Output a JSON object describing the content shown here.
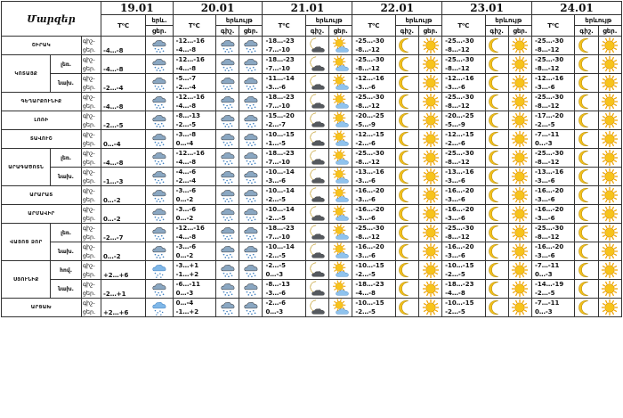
{
  "header": {
    "regions_title": "Մարզեր",
    "tc": "T⁰C",
    "phenomena": "երևույթ",
    "phen_first": "երև.",
    "phen_first_2": "ցեր.",
    "day": "ցեր.",
    "night": "գիշ.",
    "dates": [
      "19.01",
      "20.01",
      "21.01",
      "22.01",
      "23.01",
      "24.01"
    ]
  },
  "rows": [
    {
      "region": "ՇԻՐԱԿ",
      "sub": "",
      "dn": [
        "գիշ-",
        "ցեր."
      ],
      "t1": "-4…-8",
      "i1": "snow",
      "d": [
        {
          "n": "-12…-16",
          "d": "-4…-8",
          "a": "snow",
          "b": "snow"
        },
        {
          "n": "-18…-23",
          "d": "-7…-10",
          "a": "moon-cloud",
          "b": "sun-cloud"
        },
        {
          "n": "-25…-30",
          "d": "-8…-12",
          "a": "moon",
          "b": "sun"
        },
        {
          "n": "-25…-30",
          "d": "-8…-12",
          "a": "moon",
          "b": "sun"
        },
        {
          "n": "-25…-30",
          "d": "-8…-12",
          "a": "moon",
          "b": "sun"
        }
      ]
    },
    {
      "region": "ԿՈՏԱՅՔ",
      "sub": "լեռ.",
      "dn": [
        "գիշ-",
        "ցեր."
      ],
      "t1": "-4…-8",
      "i1": "snow",
      "d": [
        {
          "n": "-12…-16",
          "d": "-4…-8",
          "a": "snow",
          "b": "snow"
        },
        {
          "n": "-18…-23",
          "d": "-7…-10",
          "a": "moon-cloud",
          "b": "sun-cloud"
        },
        {
          "n": "-25…-30",
          "d": "-8…-12",
          "a": "moon",
          "b": "sun"
        },
        {
          "n": "-25…-30",
          "d": "-8…-12",
          "a": "moon",
          "b": "sun"
        },
        {
          "n": "-25…-30",
          "d": "-8…-12",
          "a": "moon",
          "b": "sun"
        }
      ]
    },
    {
      "region": "",
      "sub": "նախ.",
      "dn": [
        "գիշ-",
        "ցեր."
      ],
      "t1": "-2…-4",
      "i1": "snow",
      "d": [
        {
          "n": "-5…-7",
          "d": "-2…-4",
          "a": "snow",
          "b": "snow"
        },
        {
          "n": "-11…-14",
          "d": "-3…-6",
          "a": "moon-cloud",
          "b": "sun-cloud"
        },
        {
          "n": "-12…-16",
          "d": "-3…-6",
          "a": "moon",
          "b": "sun"
        },
        {
          "n": "-12…-16",
          "d": "-3…-6",
          "a": "moon",
          "b": "sun"
        },
        {
          "n": "-12…-16",
          "d": "-3…-6",
          "a": "moon",
          "b": "sun"
        }
      ]
    },
    {
      "region": "ԳԵՂԱՐՔՈՒՆԻՔ",
      "sub": "",
      "dn": [
        "գիշ-",
        "ցեր."
      ],
      "t1": "-4…-8",
      "i1": "snow",
      "d": [
        {
          "n": "-12…-16",
          "d": "-4…-8",
          "a": "snow",
          "b": "snow"
        },
        {
          "n": "-18…-23",
          "d": "-7…-10",
          "a": "moon-cloud",
          "b": "sun-cloud"
        },
        {
          "n": "-25…-30",
          "d": "-8…-12",
          "a": "moon",
          "b": "sun"
        },
        {
          "n": "-25…-30",
          "d": "-8…-12",
          "a": "moon",
          "b": "sun"
        },
        {
          "n": "-25…-30",
          "d": "-8…-12",
          "a": "moon",
          "b": "sun"
        }
      ]
    },
    {
      "region": "ԼՈՌԻ",
      "sub": "",
      "dn": [
        "գիշ-",
        "ցեր."
      ],
      "t1": "-2…-5",
      "i1": "snow",
      "d": [
        {
          "n": "-8…-13",
          "d": "-2…-5",
          "a": "snow",
          "b": "snow"
        },
        {
          "n": "-15…-20",
          "d": "-2…-7",
          "a": "moon-cloud",
          "b": "sun-cloud"
        },
        {
          "n": "-20…-25",
          "d": "-5…-9",
          "a": "moon",
          "b": "sun"
        },
        {
          "n": "-20…-25",
          "d": "-5…-9",
          "a": "moon",
          "b": "sun"
        },
        {
          "n": "-17…-20",
          "d": "-2…-5",
          "a": "moon",
          "b": "sun"
        }
      ]
    },
    {
      "region": "ՏԱՎՈՒՇ",
      "sub": "",
      "dn": [
        "գիշ-",
        "ցեր."
      ],
      "t1": "0…-4",
      "i1": "snow",
      "d": [
        {
          "n": "-3…-8",
          "d": "0…-4",
          "a": "snow",
          "b": "snow"
        },
        {
          "n": "-10…-15",
          "d": "-1…-5",
          "a": "moon-cloud",
          "b": "sun-cloud"
        },
        {
          "n": "-12…-15",
          "d": "-2…-6",
          "a": "moon",
          "b": "sun"
        },
        {
          "n": "-12…-15",
          "d": "-2…-6",
          "a": "moon",
          "b": "sun"
        },
        {
          "n": "-7…-11",
          "d": "0…-3",
          "a": "moon",
          "b": "sun"
        }
      ]
    },
    {
      "region": "ԱՐԱԳԱԾՈՏՆ",
      "sub": "լեռ.",
      "dn": [
        "գիշ-",
        "ցեր."
      ],
      "t1": "-4…-8",
      "i1": "snow",
      "d": [
        {
          "n": "-12…-16",
          "d": "-4…-8",
          "a": "snow",
          "b": "snow"
        },
        {
          "n": "-18…-23",
          "d": "-7…-10",
          "a": "moon-cloud",
          "b": "sun-cloud"
        },
        {
          "n": "-25…-30",
          "d": "-8…-12",
          "a": "moon",
          "b": "sun"
        },
        {
          "n": "-25…-30",
          "d": "-8…-12",
          "a": "moon",
          "b": "sun"
        },
        {
          "n": "-25…-30",
          "d": "-8…-12",
          "a": "moon",
          "b": "sun"
        }
      ]
    },
    {
      "region": "",
      "sub": "նախ.",
      "dn": [
        "գիշ-",
        "ցեր."
      ],
      "t1": "-1…-3",
      "i1": "snow",
      "d": [
        {
          "n": "-4…-6",
          "d": "-2…-4",
          "a": "snow",
          "b": "snow"
        },
        {
          "n": "-10…-14",
          "d": "-3…-6",
          "a": "moon-cloud",
          "b": "sun-cloud"
        },
        {
          "n": "-13…-16",
          "d": "-3…-6",
          "a": "moon",
          "b": "sun"
        },
        {
          "n": "-13…-16",
          "d": "-3…-6",
          "a": "moon",
          "b": "sun"
        },
        {
          "n": "-13…-16",
          "d": "-3…-6",
          "a": "moon",
          "b": "sun"
        }
      ]
    },
    {
      "region": "ԱՐԱՐԱՏ",
      "sub": "",
      "dn": [
        "գիշ-",
        "ցեր."
      ],
      "t1": "0…-2",
      "i1": "snow",
      "d": [
        {
          "n": "-3…-6",
          "d": "0…-2",
          "a": "snow",
          "b": "snow"
        },
        {
          "n": "-10…-14",
          "d": "-2…-5",
          "a": "moon-cloud",
          "b": "sun-cloud"
        },
        {
          "n": "-16…-20",
          "d": "-3…-6",
          "a": "moon",
          "b": "sun"
        },
        {
          "n": "-16…-20",
          "d": "-3…-6",
          "a": "moon",
          "b": "sun"
        },
        {
          "n": "-16…-20",
          "d": "-3…-6",
          "a": "moon",
          "b": "sun"
        }
      ]
    },
    {
      "region": "ԱՐՄԱՎԻՐ",
      "sub": "",
      "dn": [
        "գիշ-",
        "ցեր."
      ],
      "t1": "0…-2",
      "i1": "snow",
      "d": [
        {
          "n": "-3…-6",
          "d": "0…-2",
          "a": "snow",
          "b": "snow"
        },
        {
          "n": "-10…-14",
          "d": "-2…-5",
          "a": "moon-cloud",
          "b": "sun-cloud"
        },
        {
          "n": "-16…-20",
          "d": "-3…-6",
          "a": "moon",
          "b": "sun"
        },
        {
          "n": "-16…-20",
          "d": "-3…-6",
          "a": "moon",
          "b": "sun"
        },
        {
          "n": "-16…-20",
          "d": "-3…-6",
          "a": "moon",
          "b": "sun"
        }
      ]
    },
    {
      "region": "ՎԱՅՈՑ ՁՈՐ",
      "sub": "լեռ.",
      "dn": [
        "գիշ-",
        "ցեր."
      ],
      "t1": "-2…-7",
      "i1": "snow",
      "d": [
        {
          "n": "-12…-16",
          "d": "-4…-8",
          "a": "snow",
          "b": "snow"
        },
        {
          "n": "-18…-23",
          "d": "-7…-10",
          "a": "moon-cloud",
          "b": "sun-cloud"
        },
        {
          "n": "-25…-30",
          "d": "-8…-12",
          "a": "moon",
          "b": "sun"
        },
        {
          "n": "-25…-30",
          "d": "-8…-12",
          "a": "moon",
          "b": "sun"
        },
        {
          "n": "-25…-30",
          "d": "-8…-12",
          "a": "moon",
          "b": "sun"
        }
      ]
    },
    {
      "region": "",
      "sub": "նախ.",
      "dn": [
        "գիշ-",
        "ցեր."
      ],
      "t1": "0…-2",
      "i1": "snow",
      "d": [
        {
          "n": "-3…-6",
          "d": "0…-2",
          "a": "snow",
          "b": "snow"
        },
        {
          "n": "-10…-14",
          "d": "-2…-5",
          "a": "moon-cloud",
          "b": "sun-cloud"
        },
        {
          "n": "-16…-20",
          "d": "-3…-6",
          "a": "moon",
          "b": "sun"
        },
        {
          "n": "-16…-20",
          "d": "-3…-6",
          "a": "moon",
          "b": "sun"
        },
        {
          "n": "-16…-20",
          "d": "-3…-6",
          "a": "moon",
          "b": "sun"
        }
      ]
    },
    {
      "region": "ՍՅՈՒՆԻՔ",
      "sub": "հով.",
      "dn": [
        "գիշ-",
        "ցեր."
      ],
      "t1": "+2…+6",
      "i1": "rain-snow",
      "d": [
        {
          "n": "-3…+1",
          "d": "-1…+2",
          "a": "snow",
          "b": "snow"
        },
        {
          "n": "-2…-5",
          "d": "0…-3",
          "a": "moon-cloud",
          "b": "sun-cloud"
        },
        {
          "n": "-10…-15",
          "d": "-2…-5",
          "a": "moon",
          "b": "sun"
        },
        {
          "n": "-10…-15",
          "d": "-2…-5",
          "a": "moon",
          "b": "sun"
        },
        {
          "n": "-7…-11",
          "d": "0…-3",
          "a": "moon",
          "b": "sun"
        }
      ]
    },
    {
      "region": "",
      "sub": "նախ.",
      "dn": [
        "գիշ-",
        "ցեր."
      ],
      "t1": "-2…+1",
      "i1": "snow",
      "d": [
        {
          "n": "-6…-11",
          "d": "0…-3",
          "a": "snow",
          "b": "snow"
        },
        {
          "n": "-8…-13",
          "d": "-3…-6",
          "a": "moon-cloud",
          "b": "sun-cloud"
        },
        {
          "n": "-18…-23",
          "d": "-4…-8",
          "a": "moon",
          "b": "sun"
        },
        {
          "n": "-18…-23",
          "d": "-4…-8",
          "a": "moon",
          "b": "sun"
        },
        {
          "n": "-14…-19",
          "d": "-2…-5",
          "a": "moon",
          "b": "sun"
        }
      ]
    },
    {
      "region": "ԱՐՑԱԽ",
      "sub": "",
      "dn": [
        "գիշ-",
        "ցեր."
      ],
      "t1": "+2…+6",
      "i1": "rain-snow",
      "d": [
        {
          "n": "0…-4",
          "d": "-1…+2",
          "a": "snow",
          "b": "snow"
        },
        {
          "n": "-2…-6",
          "d": "0…-3",
          "a": "moon-cloud",
          "b": "sun-cloud"
        },
        {
          "n": "-10…-15",
          "d": "-2…-5",
          "a": "moon",
          "b": "sun"
        },
        {
          "n": "-10…-15",
          "d": "-2…-5",
          "a": "moon",
          "b": "sun"
        },
        {
          "n": "-7…-11",
          "d": "0…-3",
          "a": "moon",
          "b": "sun"
        }
      ]
    }
  ]
}
